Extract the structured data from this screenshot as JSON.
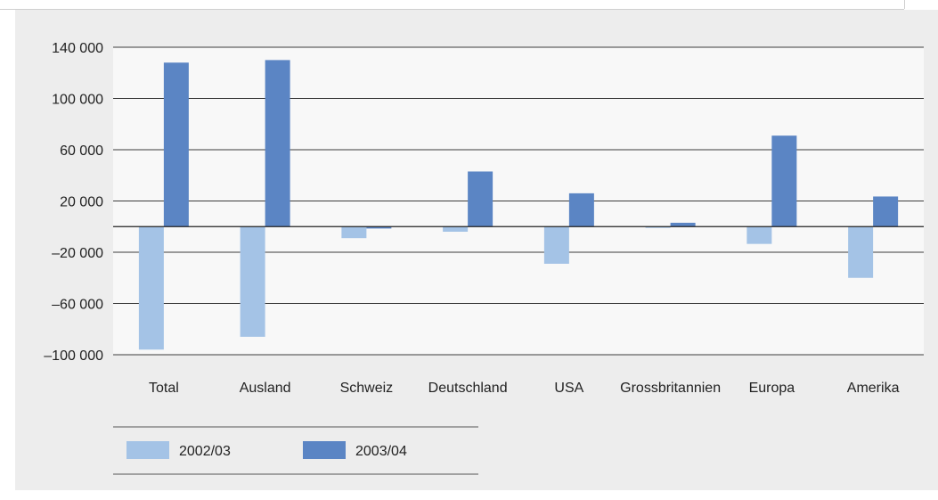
{
  "chart_data": {
    "type": "bar",
    "categories": [
      "Total",
      "Ausland",
      "Schweiz",
      "Deutschland",
      "USA",
      "Grossbritannien",
      "Europa",
      "Amerika"
    ],
    "series": [
      {
        "name": "2002/03",
        "color": "#a4c3e6",
        "values": [
          -96000,
          -86000,
          -9000,
          -4000,
          -29000,
          -1000,
          -13500,
          -40000
        ]
      },
      {
        "name": "2003/04",
        "color": "#5b85c4",
        "values": [
          128000,
          130000,
          -1500,
          43000,
          26000,
          3000,
          71000,
          23500
        ]
      }
    ],
    "y_ticks": [
      {
        "value": 140000,
        "label": "140 000"
      },
      {
        "value": 100000,
        "label": "100 000"
      },
      {
        "value": 60000,
        "label": "60 000"
      },
      {
        "value": 20000,
        "label": "20 000"
      },
      {
        "value": -20000,
        "label": "–20 000"
      },
      {
        "value": -60000,
        "label": "–60 000"
      },
      {
        "value": -100000,
        "label": "–100 000"
      }
    ],
    "ylim": [
      -100000,
      140000
    ],
    "grid": true,
    "legend_position": "bottom-left"
  }
}
